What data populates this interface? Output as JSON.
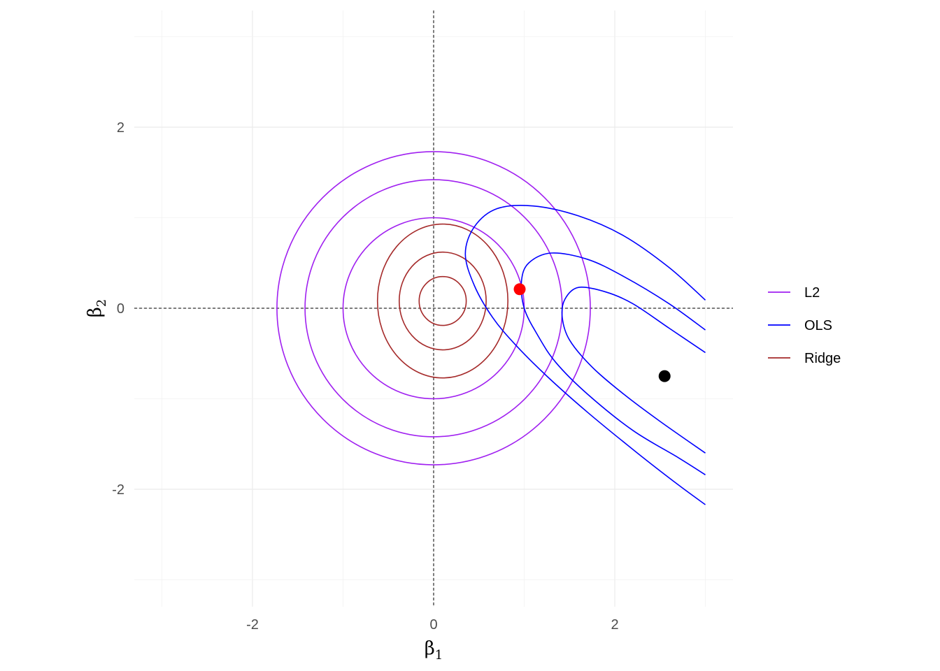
{
  "chart_data": {
    "type": "line",
    "xlabel": {
      "base": "β",
      "sub": "1"
    },
    "ylabel": {
      "base": "β",
      "sub": "2"
    },
    "xlim": [
      -3.0,
      3.3
    ],
    "ylim": [
      -3.3,
      3.3
    ],
    "x_ticks": [
      -2,
      0,
      2
    ],
    "x_tick_labels": [
      "-2",
      "0",
      "2"
    ],
    "y_ticks": [
      -2,
      0,
      2
    ],
    "y_tick_labels": [
      "-2",
      "0",
      "2"
    ],
    "grid": true,
    "reference_lines": {
      "x": 0,
      "y": 0,
      "style": "dashed"
    },
    "legend": {
      "placement": "right",
      "entries": [
        {
          "label": "L2",
          "color": "#a020f0"
        },
        {
          "label": "OLS",
          "color": "#0000ff"
        },
        {
          "label": "Ridge",
          "color": "#a52a2a"
        }
      ]
    },
    "series": [
      {
        "name": "L2",
        "color": "#a020f0",
        "kind": "circles",
        "center": [
          0,
          0
        ],
        "radii": [
          1.0,
          1.42,
          1.73
        ]
      },
      {
        "name": "Ridge",
        "color": "#a52a2a",
        "kind": "ellipses",
        "center": [
          0.1,
          0.08
        ],
        "rings": [
          {
            "rx": 0.26,
            "ry": 0.27
          },
          {
            "rx": 0.48,
            "ry": 0.54
          },
          {
            "rx": 0.72,
            "ry": 0.85
          }
        ]
      },
      {
        "name": "OLS",
        "color": "#0000ff",
        "kind": "contours",
        "lines": [
          [
            [
              3.0,
              0.09
            ],
            [
              2.6,
              0.45
            ],
            [
              2.1,
              0.8
            ],
            [
              1.6,
              1.02
            ],
            [
              1.1,
              1.13
            ],
            [
              0.7,
              1.1
            ],
            [
              0.45,
              0.9
            ],
            [
              0.35,
              0.6
            ],
            [
              0.45,
              0.25
            ],
            [
              0.65,
              -0.1
            ],
            [
              0.9,
              -0.4
            ],
            [
              1.25,
              -0.75
            ],
            [
              1.7,
              -1.15
            ],
            [
              2.25,
              -1.6
            ],
            [
              2.7,
              -1.95
            ],
            [
              3.0,
              -2.17
            ]
          ],
          [
            [
              3.0,
              -0.24
            ],
            [
              2.6,
              0.05
            ],
            [
              2.1,
              0.35
            ],
            [
              1.7,
              0.54
            ],
            [
              1.3,
              0.61
            ],
            [
              1.05,
              0.5
            ],
            [
              0.97,
              0.3
            ],
            [
              1.0,
              0.0
            ],
            [
              1.15,
              -0.3
            ],
            [
              1.35,
              -0.6
            ],
            [
              1.7,
              -0.95
            ],
            [
              2.2,
              -1.35
            ],
            [
              2.7,
              -1.65
            ],
            [
              3.0,
              -1.84
            ]
          ],
          [
            [
              3.0,
              -0.49
            ],
            [
              2.6,
              -0.22
            ],
            [
              2.2,
              0.05
            ],
            [
              1.9,
              0.18
            ],
            [
              1.6,
              0.23
            ],
            [
              1.45,
              0.1
            ],
            [
              1.42,
              -0.1
            ],
            [
              1.5,
              -0.35
            ],
            [
              1.75,
              -0.65
            ],
            [
              2.1,
              -0.95
            ],
            [
              2.5,
              -1.25
            ],
            [
              3.0,
              -1.6
            ]
          ]
        ]
      }
    ],
    "points": [
      {
        "label": "ols_estimate",
        "x": 2.55,
        "y": -0.75,
        "color": "#000000"
      },
      {
        "label": "ridge_estimate",
        "x": 0.95,
        "y": 0.21,
        "color": "#ff0000"
      }
    ]
  }
}
